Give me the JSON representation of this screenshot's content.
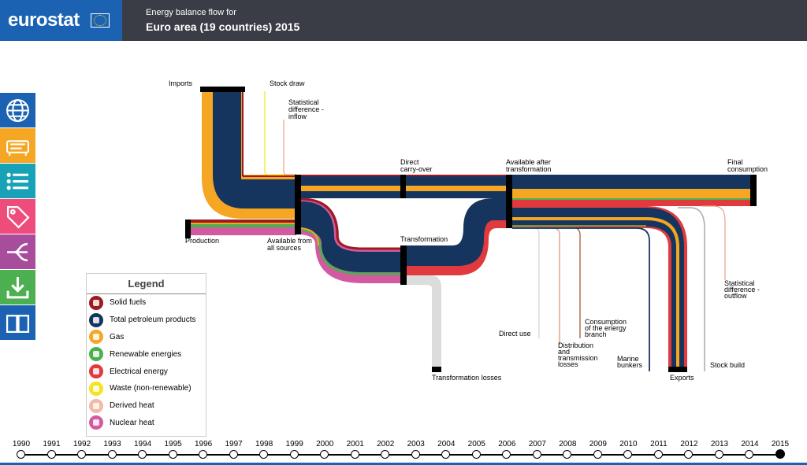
{
  "header": {
    "logo": "eurostat",
    "subtitle": "Energy balance flow for",
    "title": "Euro area (19 countries) 2015"
  },
  "sidebar": [
    {
      "icon": "globe-icon",
      "color": "#1b63b2"
    },
    {
      "icon": "fuel-pump-icon",
      "color": "#f5a623"
    },
    {
      "icon": "list-icon",
      "color": "#17a2b8"
    },
    {
      "icon": "price-tag-icon",
      "color": "#ee4d7c"
    },
    {
      "icon": "flow-split-icon",
      "color": "#a84d9c"
    },
    {
      "icon": "download-icon",
      "color": "#4caf50"
    },
    {
      "icon": "book-icon",
      "color": "#1b63b2"
    }
  ],
  "diagram": {
    "labels": {
      "imports": "Imports",
      "stock_draw": "Stock draw",
      "stat_diff_inflow": [
        "Statistical",
        "difference -",
        "inflow"
      ],
      "production": "Production",
      "available_all_sources": [
        "Available from",
        "all sources"
      ],
      "direct_carry_over": [
        "Direct",
        "carry-over"
      ],
      "transformation": "Transformation",
      "available_after_transformation": [
        "Available after",
        "transformation"
      ],
      "final_consumption": [
        "Final",
        "consumption"
      ],
      "transformation_losses": "Transformation losses",
      "direct_use": "Direct use",
      "distribution_losses": [
        "Distribution",
        "and",
        "transmission",
        "losses"
      ],
      "consumption_energy_branch": [
        "Consumption",
        "of the energy",
        "branch"
      ],
      "marine_bunkers": [
        "Marine",
        "bunkers"
      ],
      "exports": "Exports",
      "stock_build": "Stock build",
      "stat_diff_outflow": [
        "Statistical",
        "difference -",
        "outflow"
      ]
    },
    "colors": {
      "solid": "#9d1b1f",
      "petroleum": "#15355f",
      "gas": "#f5a623",
      "renewable": "#4caf50",
      "electrical": "#e03a3e",
      "waste": "#f6e21d",
      "derived_heat": "#f3b9a3",
      "nuclear": "#d15aa1",
      "losses": "#dcdcdc"
    }
  },
  "legend": {
    "title": "Legend",
    "items": [
      {
        "label": "Solid fuels",
        "color": "#9d1b1f"
      },
      {
        "label": "Total petroleum products",
        "color": "#15355f"
      },
      {
        "label": "Gas",
        "color": "#f5a623"
      },
      {
        "label": "Renewable energies",
        "color": "#4caf50"
      },
      {
        "label": "Electrical energy",
        "color": "#e03a3e"
      },
      {
        "label": "Waste (non-renewable)",
        "color": "#f6e21d"
      },
      {
        "label": "Derived heat",
        "color": "#f3b9a3"
      },
      {
        "label": "Nuclear heat",
        "color": "#d15aa1"
      }
    ]
  },
  "timeline": {
    "years": [
      "1990",
      "1991",
      "1992",
      "1993",
      "1994",
      "1995",
      "1996",
      "1997",
      "1998",
      "1999",
      "2000",
      "2001",
      "2002",
      "2003",
      "2004",
      "2005",
      "2006",
      "2007",
      "2008",
      "2009",
      "2010",
      "2011",
      "2012",
      "2013",
      "2014",
      "2015"
    ],
    "selected": "2015"
  }
}
